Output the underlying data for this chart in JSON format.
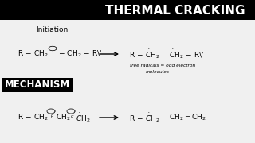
{
  "title": "THERMAL CRACKING",
  "title_bg": "#000000",
  "title_color": "#ffffff",
  "bg_color": "#f0f0f0",
  "mechanism_bg": "#000000",
  "mechanism_color": "#ffffff",
  "mechanism_text": "MECHANISM",
  "initiation_text": "Initiation",
  "arrow_color": "#000000",
  "text_color": "#000000",
  "free_radicals_line1": "free radicals = odd electron",
  "free_radicals_line2": "molecules"
}
